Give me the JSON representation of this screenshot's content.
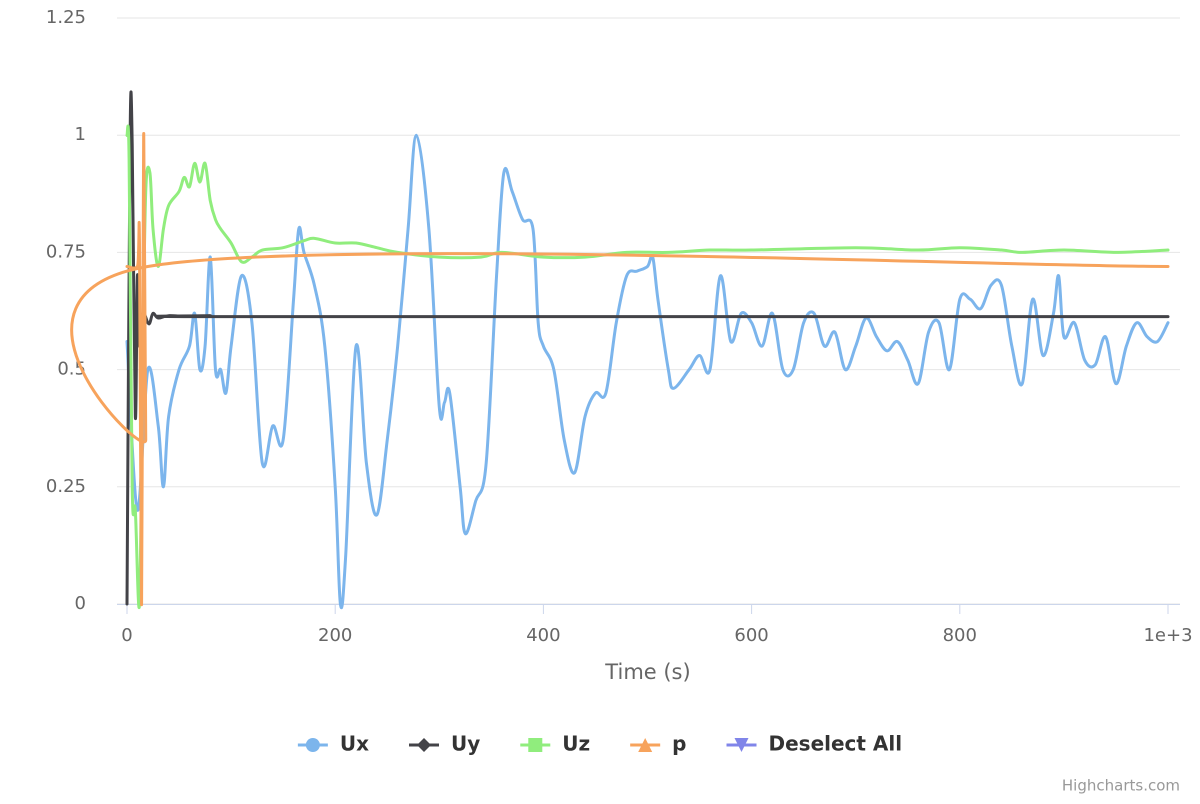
{
  "chart_data": {
    "type": "line",
    "xlabel": "Time (s)",
    "credits": "Highcharts.com",
    "xlim": [
      0,
      1000
    ],
    "xticks": [
      0,
      200,
      400,
      600,
      800,
      {
        "value": 1000,
        "label": "1e+3"
      }
    ],
    "ylim": [
      0,
      1.25
    ],
    "yticks": [
      0,
      0.25,
      0.5,
      0.75,
      1,
      1.25
    ],
    "grid": true,
    "legend": "bottom",
    "series": [
      {
        "name": "Ux",
        "color": "#7cb5ec",
        "marker": "circle",
        "x": [
          0,
          10,
          20,
          30,
          35,
          40,
          50,
          60,
          65,
          70,
          75,
          80,
          85,
          90,
          95,
          100,
          110,
          120,
          130,
          140,
          150,
          160,
          165,
          170,
          180,
          190,
          200,
          205,
          210,
          220,
          230,
          240,
          250,
          260,
          270,
          278,
          290,
          300,
          305,
          310,
          320,
          325,
          335,
          345,
          355,
          362,
          370,
          380,
          390,
          395,
          400,
          410,
          420,
          430,
          440,
          450,
          460,
          470,
          480,
          490,
          500,
          505,
          510,
          520,
          525,
          540,
          550,
          560,
          570,
          580,
          590,
          600,
          610,
          620,
          630,
          640,
          650,
          660,
          670,
          680,
          690,
          700,
          710,
          720,
          730,
          740,
          750,
          760,
          770,
          780,
          790,
          800,
          810,
          820,
          830,
          840,
          850,
          860,
          870,
          880,
          890,
          895,
          900,
          910,
          920,
          930,
          940,
          950,
          960,
          970,
          980,
          990,
          1000
        ],
        "values": [
          0.56,
          0.2,
          0.5,
          0.38,
          0.25,
          0.4,
          0.5,
          0.55,
          0.62,
          0.5,
          0.55,
          0.74,
          0.5,
          0.5,
          0.45,
          0.55,
          0.7,
          0.6,
          0.3,
          0.38,
          0.35,
          0.65,
          0.8,
          0.75,
          0.68,
          0.55,
          0.25,
          0.0,
          0.1,
          0.55,
          0.3,
          0.19,
          0.35,
          0.55,
          0.8,
          1.0,
          0.8,
          0.42,
          0.43,
          0.45,
          0.25,
          0.15,
          0.22,
          0.3,
          0.7,
          0.92,
          0.88,
          0.82,
          0.8,
          0.6,
          0.55,
          0.5,
          0.35,
          0.28,
          0.4,
          0.45,
          0.45,
          0.6,
          0.7,
          0.71,
          0.72,
          0.74,
          0.65,
          0.5,
          0.46,
          0.5,
          0.53,
          0.5,
          0.7,
          0.56,
          0.62,
          0.6,
          0.55,
          0.62,
          0.5,
          0.5,
          0.6,
          0.62,
          0.55,
          0.58,
          0.5,
          0.55,
          0.61,
          0.57,
          0.54,
          0.56,
          0.52,
          0.47,
          0.58,
          0.6,
          0.5,
          0.65,
          0.65,
          0.63,
          0.68,
          0.68,
          0.55,
          0.47,
          0.65,
          0.53,
          0.62,
          0.7,
          0.57,
          0.6,
          0.52,
          0.51,
          0.57,
          0.47,
          0.55,
          0.6,
          0.57,
          0.56,
          0.6
        ]
      },
      {
        "name": "Uy",
        "color": "#434348",
        "marker": "diamond",
        "x": [
          0,
          3,
          5,
          8,
          10,
          12,
          15,
          20,
          22,
          25,
          30,
          40,
          60,
          80,
          100,
          1000
        ],
        "values": [
          0,
          1.0,
          0.98,
          0.4,
          0.7,
          0.55,
          0.62,
          0.6,
          0.6,
          0.62,
          0.61,
          0.615,
          0.613,
          0.615,
          0.613,
          0.613
        ]
      },
      {
        "name": "Uz",
        "color": "#90ed7d",
        "marker": "square",
        "x": [
          0,
          2,
          5,
          8,
          12,
          15,
          18,
          22,
          25,
          30,
          35,
          40,
          50,
          55,
          60,
          65,
          70,
          75,
          80,
          85,
          90,
          100,
          110,
          120,
          130,
          150,
          170,
          180,
          200,
          220,
          240,
          260,
          300,
          340,
          360,
          400,
          440,
          480,
          520,
          560,
          600,
          700,
          760,
          800,
          840,
          860,
          900,
          950,
          1000
        ],
        "values": [
          1.0,
          0.95,
          0.25,
          0.2,
          0.0,
          0.5,
          0.88,
          0.92,
          0.8,
          0.72,
          0.8,
          0.85,
          0.88,
          0.91,
          0.89,
          0.94,
          0.9,
          0.94,
          0.86,
          0.82,
          0.8,
          0.77,
          0.73,
          0.74,
          0.755,
          0.76,
          0.775,
          0.78,
          0.77,
          0.77,
          0.76,
          0.75,
          0.74,
          0.74,
          0.75,
          0.74,
          0.74,
          0.75,
          0.75,
          0.755,
          0.755,
          0.76,
          0.755,
          0.76,
          0.755,
          0.75,
          0.755,
          0.75,
          0.755
        ]
      },
      {
        "name": "p",
        "color": "#f7a35c",
        "marker": "triangle",
        "x": [
          0,
          10,
          12,
          14,
          16,
          18,
          20,
          1000
        ],
        "values": [
          0.72,
          0.72,
          0.77,
          0.0,
          1.0,
          0.35,
          0.72,
          0.72
        ]
      },
      {
        "name": "Deselect All",
        "color": "#8085e9",
        "marker": "triangle-down",
        "x": [],
        "values": []
      }
    ]
  }
}
